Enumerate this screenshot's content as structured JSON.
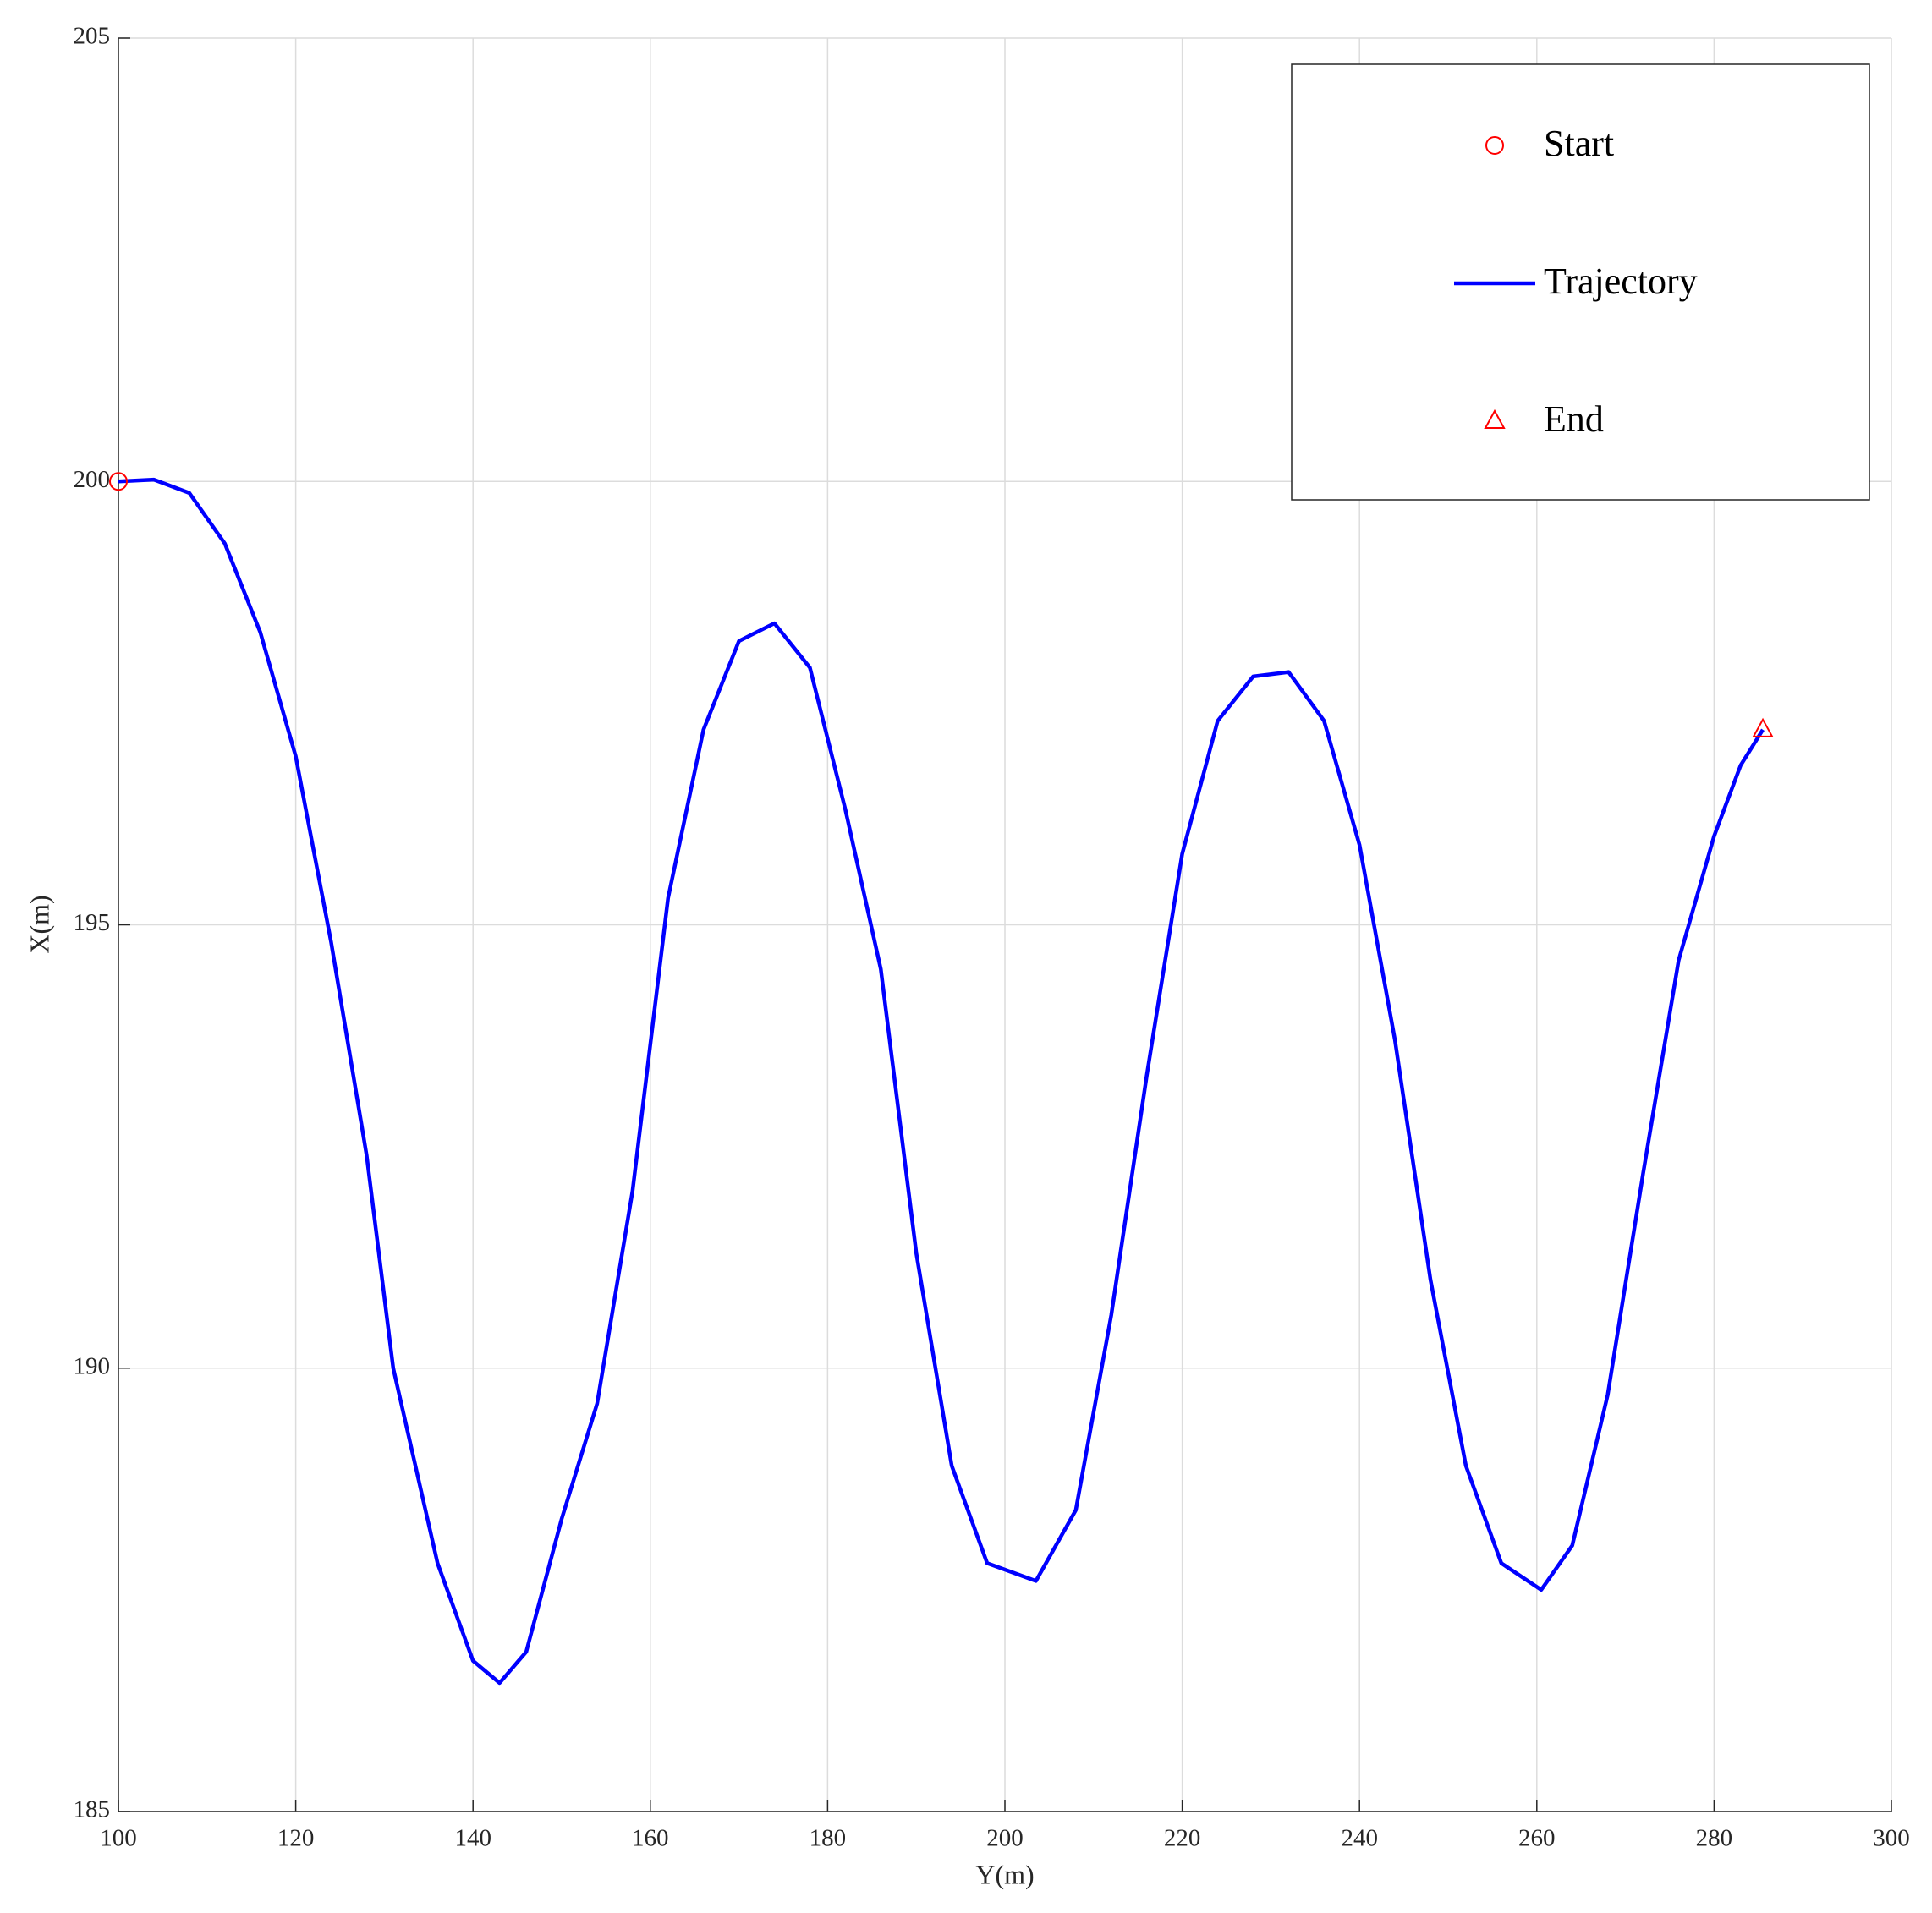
{
  "chart_data": {
    "type": "line",
    "x_label": "Y(m)",
    "y_label": "X(m)",
    "xlim": [
      100,
      300
    ],
    "xticks": [
      100,
      120,
      140,
      160,
      180,
      200,
      220,
      240,
      260,
      280,
      300
    ],
    "ylim": [
      185,
      205
    ],
    "yticks": [
      185,
      190,
      195,
      200,
      205
    ],
    "grid": true,
    "legend": "upper right",
    "series": [
      {
        "name": "Start",
        "color": "#ff0000",
        "marker": "circle",
        "x": [
          100
        ],
        "values": [
          200
        ]
      },
      {
        "name": "Trajectory",
        "color": "#0000ff",
        "x": [
          100,
          104,
          108,
          112,
          116,
          120,
          124,
          128,
          131,
          136,
          140,
          143,
          146,
          150,
          154,
          158,
          162,
          166,
          170,
          174,
          178,
          182,
          186,
          190,
          194,
          198,
          203.5,
          208,
          212,
          216,
          220,
          224,
          228,
          232,
          236,
          240,
          244,
          248,
          252,
          256,
          260.5,
          264,
          268,
          272,
          276,
          280,
          283,
          285.5
        ],
        "values": [
          200,
          200.02,
          199.87,
          199.3,
          198.3,
          196.9,
          194.8,
          192.4,
          190,
          187.8,
          186.7,
          186.45,
          186.8,
          188.3,
          189.6,
          192,
          195.3,
          197.2,
          198.2,
          198.4,
          197.9,
          196.3,
          194.5,
          191.3,
          188.9,
          187.8,
          187.6,
          188.4,
          190.6,
          193.3,
          195.8,
          197.3,
          197.8,
          197.85,
          197.3,
          195.9,
          193.7,
          191,
          188.9,
          187.8,
          187.5,
          188,
          189.7,
          192.2,
          194.6,
          196,
          196.8,
          197.2
        ]
      },
      {
        "name": "End",
        "color": "#ff0000",
        "marker": "triangle",
        "x": [
          285.5
        ],
        "values": [
          197.2
        ]
      }
    ]
  }
}
